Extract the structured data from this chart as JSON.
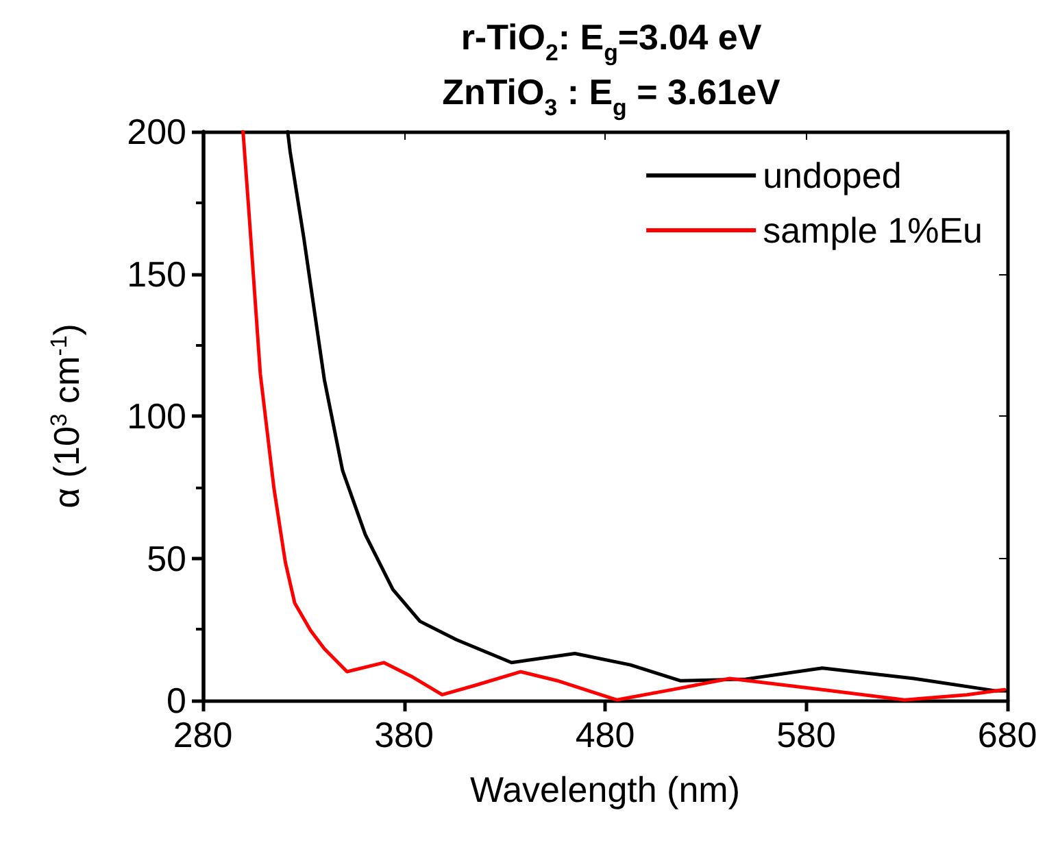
{
  "chart_data": {
    "type": "line",
    "title": "r-TiO$_{2}$: E$_{g}$=3.04 eV\nZnTiO$_{3}$ : E$_{g}$ = 3.61eV",
    "xlabel": "Wavelength (nm)",
    "ylabel": "α (10$^{3}$ cm$^{-1}$)",
    "xlim": [
      280,
      680
    ],
    "xticks": [
      280,
      380,
      480,
      580,
      680
    ],
    "ylim": [
      0,
      200
    ],
    "yticks": [
      0,
      50,
      100,
      150,
      200
    ],
    "grid": false,
    "legend": "top right",
    "marker": "none",
    "line_style": "solid",
    "series": [
      {
        "name": "undoped",
        "color": "#000000",
        "x": [
          322.2,
          323.4,
          330.2,
          340.4,
          349.5,
          360.8,
          374.5,
          388,
          406,
          433.5,
          465,
          492.6,
          517.6,
          550,
          588,
          633.5,
          674,
          680
        ],
        "values": [
          200,
          193,
          162.7,
          112.9,
          80.8,
          58.3,
          39,
          27.8,
          21.4,
          13.3,
          16.5,
          12.5,
          6.9,
          7.5,
          11.4,
          7.7,
          3.4,
          3.4
        ]
      },
      {
        "name": "sample 1%Eu",
        "color": "#ff0000",
        "x": [
          300,
          303,
          308.6,
          315.4,
          321,
          325.7,
          333.6,
          340.4,
          351.7,
          370,
          383.6,
          399,
          415.4,
          438,
          456,
          485.8,
          515,
          542,
          588,
          629,
          660,
          678.6
        ],
        "values": [
          200,
          171,
          114.7,
          74.4,
          48.7,
          34.2,
          24.6,
          18.2,
          10.1,
          13.3,
          8.5,
          2,
          5.3,
          10.1,
          7,
          0.2,
          4,
          7.7,
          3.8,
          0.2,
          2,
          3.8
        ]
      }
    ]
  }
}
